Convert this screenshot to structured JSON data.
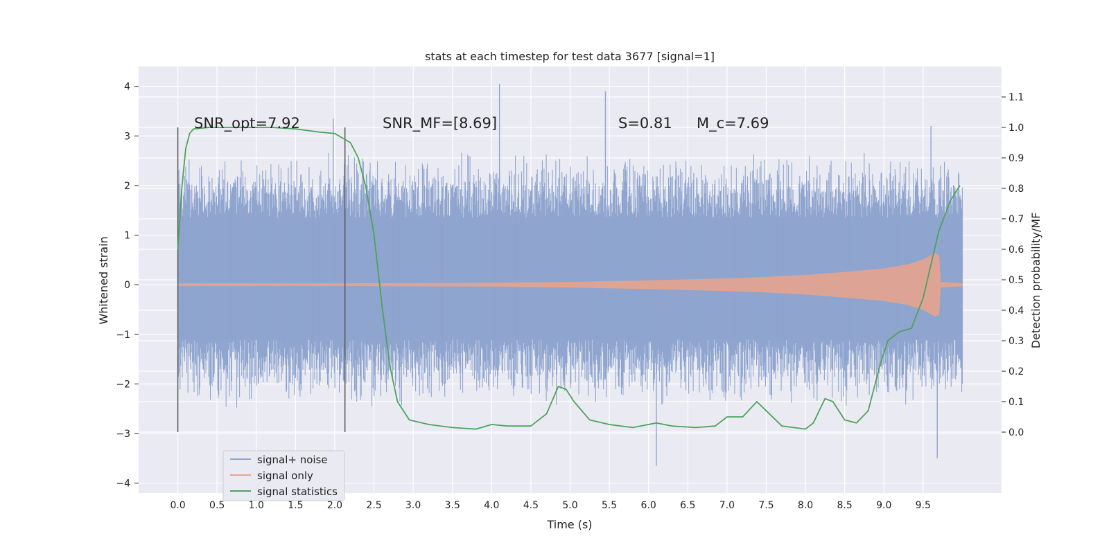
{
  "chart_data": {
    "type": "line",
    "title": "stats at each timestep for test data 3677 [signal=1]",
    "xlabel": "Time (s)",
    "ylabel": "Whitened strain",
    "ylabel_right": "Detection probability/MF",
    "xlim": [
      -0.5,
      10.5
    ],
    "ylim": [
      -4.2,
      4.4
    ],
    "ylim_right": [
      -0.2,
      1.2
    ],
    "x_ticks": [
      "0.0",
      "0.5",
      "1.0",
      "1.5",
      "2.0",
      "2.5",
      "3.0",
      "3.5",
      "4.0",
      "4.5",
      "5.0",
      "5.5",
      "6.0",
      "6.5",
      "7.0",
      "7.5",
      "8.0",
      "8.5",
      "9.0",
      "9.5"
    ],
    "y_ticks": [
      "−4",
      "−3",
      "−2",
      "−1",
      "0",
      "1",
      "2",
      "3",
      "4"
    ],
    "y_right_ticks": [
      "0.0",
      "0.1",
      "0.2",
      "0.3",
      "0.4",
      "0.5",
      "0.6",
      "0.7",
      "0.8",
      "0.9",
      "1.0",
      "1.1"
    ],
    "grid": true,
    "legend_position": "lower-left",
    "series": [
      {
        "name": "signal+ noise",
        "color": "#8fa5cf",
        "axis": "left",
        "x_range": [
          0.0,
          10.0
        ],
        "envelope_core": [
          -1.1,
          1.35
        ],
        "typical_spike_range": [
          -2.5,
          2.7
        ],
        "extreme_points": [
          [
            1.98,
            3.35
          ],
          [
            4.1,
            4.05
          ],
          [
            5.45,
            3.9
          ],
          [
            6.1,
            -3.65
          ],
          [
            9.68,
            -3.5
          ],
          [
            9.6,
            3.2
          ]
        ]
      },
      {
        "name": "signal only",
        "color": "#e5a38d",
        "axis": "left",
        "chirp": true,
        "points": [
          [
            0.0,
            0.02
          ],
          [
            2.0,
            0.02
          ],
          [
            4.0,
            0.03
          ],
          [
            5.0,
            0.05
          ],
          [
            6.0,
            0.08
          ],
          [
            7.0,
            0.12
          ],
          [
            7.5,
            0.15
          ],
          [
            8.0,
            0.19
          ],
          [
            8.5,
            0.25
          ],
          [
            9.0,
            0.32
          ],
          [
            9.3,
            0.4
          ],
          [
            9.5,
            0.5
          ],
          [
            9.65,
            0.63
          ],
          [
            9.7,
            0.6
          ],
          [
            9.72,
            0.05
          ],
          [
            10.0,
            0.02
          ]
        ]
      },
      {
        "name": "signal statistics",
        "color": "#4ea25b",
        "axis": "right",
        "points": [
          [
            0.0,
            0.6
          ],
          [
            0.05,
            0.8
          ],
          [
            0.1,
            0.93
          ],
          [
            0.15,
            0.98
          ],
          [
            0.2,
            0.995
          ],
          [
            0.4,
            1.0
          ],
          [
            1.2,
            1.0
          ],
          [
            1.5,
            0.995
          ],
          [
            1.8,
            0.985
          ],
          [
            2.0,
            0.98
          ],
          [
            2.2,
            0.95
          ],
          [
            2.3,
            0.9
          ],
          [
            2.4,
            0.8
          ],
          [
            2.5,
            0.65
          ],
          [
            2.6,
            0.42
          ],
          [
            2.7,
            0.22
          ],
          [
            2.8,
            0.1
          ],
          [
            2.95,
            0.04
          ],
          [
            3.2,
            0.025
          ],
          [
            3.5,
            0.015
          ],
          [
            3.8,
            0.01
          ],
          [
            4.0,
            0.025
          ],
          [
            4.2,
            0.02
          ],
          [
            4.5,
            0.02
          ],
          [
            4.7,
            0.06
          ],
          [
            4.85,
            0.15
          ],
          [
            4.95,
            0.14
          ],
          [
            5.05,
            0.1
          ],
          [
            5.25,
            0.04
          ],
          [
            5.5,
            0.025
          ],
          [
            5.8,
            0.015
          ],
          [
            6.1,
            0.03
          ],
          [
            6.3,
            0.02
          ],
          [
            6.6,
            0.015
          ],
          [
            6.85,
            0.02
          ],
          [
            7.0,
            0.05
          ],
          [
            7.2,
            0.05
          ],
          [
            7.38,
            0.1
          ],
          [
            7.5,
            0.07
          ],
          [
            7.7,
            0.02
          ],
          [
            8.0,
            0.01
          ],
          [
            8.1,
            0.03
          ],
          [
            8.25,
            0.11
          ],
          [
            8.35,
            0.1
          ],
          [
            8.5,
            0.04
          ],
          [
            8.65,
            0.03
          ],
          [
            8.8,
            0.07
          ],
          [
            8.95,
            0.22
          ],
          [
            9.05,
            0.3
          ],
          [
            9.2,
            0.33
          ],
          [
            9.35,
            0.34
          ],
          [
            9.5,
            0.44
          ],
          [
            9.7,
            0.66
          ],
          [
            9.85,
            0.76
          ],
          [
            9.97,
            0.81
          ]
        ]
      }
    ],
    "vertical_markers_x": [
      0.0,
      2.13
    ],
    "annotations": [
      {
        "text": "SNR_opt=7.92",
        "x": 0.2
      },
      {
        "text": "SNR_MF=[8.69]",
        "x": 2.6
      },
      {
        "text": "S=0.81",
        "x": 5.6
      },
      {
        "text": "M_c=7.69",
        "x": 6.6
      }
    ]
  }
}
